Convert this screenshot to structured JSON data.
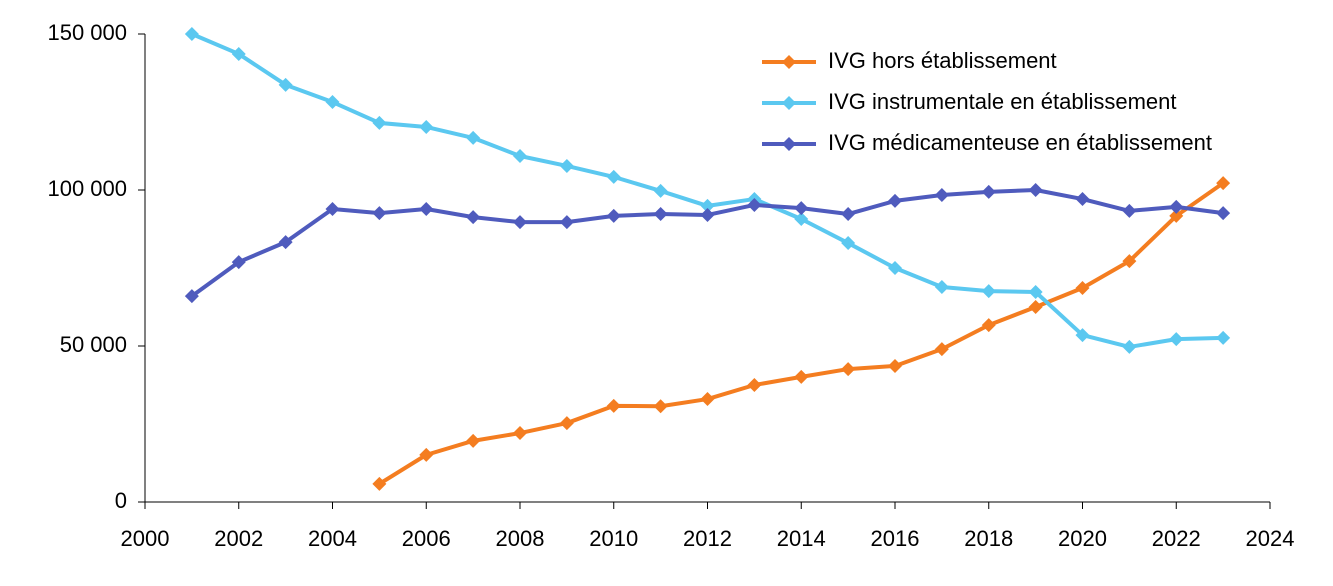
{
  "chart_data": {
    "type": "line",
    "x": [
      2001,
      2002,
      2003,
      2004,
      2005,
      2006,
      2007,
      2008,
      2009,
      2010,
      2011,
      2012,
      2013,
      2014,
      2015,
      2016,
      2017,
      2018,
      2019,
      2020,
      2021,
      2022,
      2023
    ],
    "series": [
      {
        "name": "IVG hors établissement",
        "color": "#f47d20",
        "values": [
          null,
          null,
          null,
          null,
          5800,
          15100,
          19600,
          22100,
          25300,
          30800,
          30700,
          33000,
          37500,
          40100,
          42600,
          43600,
          49000,
          56700,
          62500,
          68600,
          77200,
          91700,
          102200
        ]
      },
      {
        "name": "IVG instrumentale en établissement",
        "color": "#5bc8f0",
        "values": [
          150000,
          143600,
          133700,
          128200,
          121500,
          120200,
          116700,
          110900,
          107700,
          104200,
          99700,
          94900,
          97100,
          90700,
          83000,
          75000,
          68900,
          67600,
          67300,
          53500,
          49700,
          52200,
          52600
        ]
      },
      {
        "name": "IVG médicamenteuse en établissement",
        "color": "#4f5bbd",
        "values": [
          66000,
          76900,
          83300,
          93900,
          92600,
          93900,
          91300,
          89700,
          89700,
          91700,
          92300,
          92000,
          95200,
          94200,
          92300,
          96500,
          98400,
          99400,
          100000,
          97100,
          93300,
          94600,
          92600
        ]
      }
    ],
    "xlim": [
      2000,
      2024
    ],
    "xticks": [
      2000,
      2002,
      2004,
      2006,
      2008,
      2010,
      2012,
      2014,
      2016,
      2018,
      2020,
      2022,
      2024
    ],
    "ylim": [
      0,
      150000
    ],
    "yticks": [
      0,
      {
        "value": 50000,
        "label": "50 000"
      },
      {
        "value": 100000,
        "label": "100 000"
      },
      {
        "value": 150000,
        "label": "150 000"
      }
    ],
    "grid": false,
    "legend": "top-right"
  }
}
